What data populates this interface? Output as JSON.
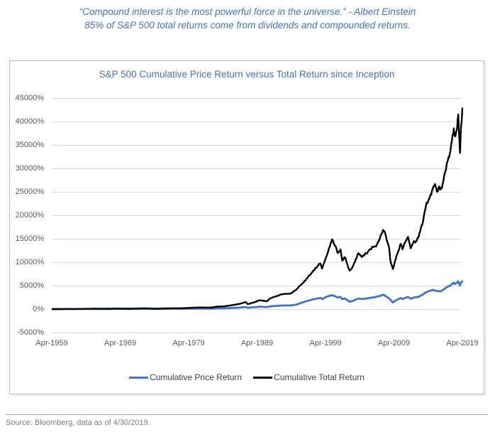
{
  "header": {
    "quote_line1": "“Compound interest is the most powerful force in the universe.” - Albert Einstein",
    "quote_line2": "85% of S&P 500 total returns come from dividends and compounded returns."
  },
  "footer": {
    "source": "Source: Bloomberg, data as of 4/30/2019."
  },
  "colors": {
    "accent_blue": "#4472C4",
    "series_price": "#4472C4",
    "series_total": "#000000",
    "gridline": "#D9D9D9",
    "axis_label": "#595959",
    "panel_border": "#BFBFBF",
    "source_text": "#7F7F7F"
  },
  "chart_data": {
    "type": "line",
    "title": "S&P 500 Cumulative Price Return versus Total Return since Inception",
    "grid": true,
    "legend_position": "bottom",
    "ylim": [
      -5000,
      45000
    ],
    "y_tick_step": 5000,
    "y_ticks": [
      {
        "label": "45000%",
        "value": 45000
      },
      {
        "label": "40000%",
        "value": 40000
      },
      {
        "label": "35000%",
        "value": 35000
      },
      {
        "label": "30000%",
        "value": 30000
      },
      {
        "label": "25000%",
        "value": 25000
      },
      {
        "label": "20000%",
        "value": 20000
      },
      {
        "label": "15000%",
        "value": 15000
      },
      {
        "label": "10000%",
        "value": 10000
      },
      {
        "label": "5000%",
        "value": 5000
      },
      {
        "label": "0%",
        "value": 0
      },
      {
        "label": "-5000%",
        "value": -5000
      }
    ],
    "x_range_years": [
      1959.3,
      2019.3
    ],
    "x_ticks": [
      {
        "label": "Apr-1959",
        "year": 1959.3
      },
      {
        "label": "Apr-1969",
        "year": 1969.3
      },
      {
        "label": "Apr-1979",
        "year": 1979.3
      },
      {
        "label": "Apr-1989",
        "year": 1989.3
      },
      {
        "label": "Apr-1999",
        "year": 1999.3
      },
      {
        "label": "Apr-2009",
        "year": 2009.3
      },
      {
        "label": "Apr-2019",
        "year": 2019.3
      }
    ],
    "series": [
      {
        "name": "Cumulative Price Return",
        "color": "#4472C4",
        "points": [
          [
            1959.3,
            0
          ],
          [
            1962.5,
            5
          ],
          [
            1965.8,
            30
          ],
          [
            1966.8,
            22
          ],
          [
            1968.9,
            45
          ],
          [
            1970.4,
            30
          ],
          [
            1972.9,
            65
          ],
          [
            1974.7,
            25
          ],
          [
            1976,
            60
          ],
          [
            1978.2,
            60
          ],
          [
            1980,
            95
          ],
          [
            1980.9,
            115
          ],
          [
            1982.6,
            100
          ],
          [
            1983.5,
            160
          ],
          [
            1984.5,
            170
          ],
          [
            1985.5,
            230
          ],
          [
            1986.7,
            310
          ],
          [
            1987.65,
            420
          ],
          [
            1987.95,
            290
          ],
          [
            1989,
            400
          ],
          [
            1989.7,
            500
          ],
          [
            1990.75,
            430
          ],
          [
            1991.2,
            580
          ],
          [
            1992,
            660
          ],
          [
            1993,
            760
          ],
          [
            1994.2,
            770
          ],
          [
            1995,
            940
          ],
          [
            1996.4,
            1650
          ],
          [
            1997.6,
            2100
          ],
          [
            1998.55,
            2400
          ],
          [
            1998.8,
            2100
          ],
          [
            1999.5,
            2700
          ],
          [
            2000.25,
            2950
          ],
          [
            2000.7,
            2750
          ],
          [
            2001.1,
            2450
          ],
          [
            2001.5,
            2600
          ],
          [
            2001.75,
            2100
          ],
          [
            2002.1,
            2300
          ],
          [
            2002.8,
            1550
          ],
          [
            2003.2,
            1700
          ],
          [
            2004.1,
            2250
          ],
          [
            2004.6,
            2150
          ],
          [
            2005.5,
            2300
          ],
          [
            2006.4,
            2500
          ],
          [
            2007.8,
            3050
          ],
          [
            2008.6,
            2300
          ],
          [
            2009.15,
            1400
          ],
          [
            2009.6,
            1900
          ],
          [
            2010.3,
            2350
          ],
          [
            2010.55,
            2150
          ],
          [
            2011.35,
            2600
          ],
          [
            2011.75,
            2200
          ],
          [
            2012.2,
            2450
          ],
          [
            2012.9,
            2600
          ],
          [
            2013.5,
            3100
          ],
          [
            2014,
            3600
          ],
          [
            2015,
            4100
          ],
          [
            2015.6,
            3850
          ],
          [
            2016.1,
            3800
          ],
          [
            2016.5,
            4100
          ],
          [
            2017,
            4650
          ],
          [
            2017.5,
            5000
          ],
          [
            2018.05,
            5650
          ],
          [
            2018.2,
            5350
          ],
          [
            2018.45,
            5550
          ],
          [
            2018.7,
            5950
          ],
          [
            2018.95,
            4950
          ],
          [
            2019.1,
            5650
          ],
          [
            2019.3,
            5950
          ]
        ]
      },
      {
        "name": "Cumulative Total Return",
        "color": "#000000",
        "points": [
          [
            1959.3,
            0
          ],
          [
            1960.5,
            10
          ],
          [
            1961.9,
            35
          ],
          [
            1962.5,
            12
          ],
          [
            1964,
            50
          ],
          [
            1965.8,
            75
          ],
          [
            1966.8,
            55
          ],
          [
            1968.9,
            110
          ],
          [
            1970.4,
            75
          ],
          [
            1972.9,
            165
          ],
          [
            1974.7,
            70
          ],
          [
            1976,
            170
          ],
          [
            1978.2,
            180
          ],
          [
            1980,
            290
          ],
          [
            1980.9,
            350
          ],
          [
            1982.6,
            330
          ],
          [
            1983.5,
            540
          ],
          [
            1984.5,
            580
          ],
          [
            1985.5,
            800
          ],
          [
            1986.7,
            1100
          ],
          [
            1987.65,
            1500
          ],
          [
            1987.95,
            1050
          ],
          [
            1989,
            1500
          ],
          [
            1989.7,
            1900
          ],
          [
            1990.75,
            1650
          ],
          [
            1991.2,
            2300
          ],
          [
            1992,
            2700
          ],
          [
            1993,
            3200
          ],
          [
            1994.2,
            3300
          ],
          [
            1995,
            4100
          ],
          [
            1996.4,
            6200
          ],
          [
            1997.6,
            8300
          ],
          [
            1998.55,
            9800
          ],
          [
            1998.8,
            8600
          ],
          [
            1999.5,
            11500
          ],
          [
            2000.25,
            14800
          ],
          [
            2000.7,
            13500
          ],
          [
            2001.1,
            12000
          ],
          [
            2001.5,
            12800
          ],
          [
            2001.75,
            10200
          ],
          [
            2002.1,
            11200
          ],
          [
            2002.8,
            8200
          ],
          [
            2003.2,
            8800
          ],
          [
            2004.1,
            11800
          ],
          [
            2004.6,
            11200
          ],
          [
            2005.5,
            12200
          ],
          [
            2006.4,
            13500
          ],
          [
            2006.7,
            13200
          ],
          [
            2007.8,
            17100
          ],
          [
            2008.2,
            15000
          ],
          [
            2008.6,
            13200
          ],
          [
            2008.75,
            10500
          ],
          [
            2009.15,
            8500
          ],
          [
            2009.6,
            11000
          ],
          [
            2010.3,
            13900
          ],
          [
            2010.55,
            12900
          ],
          [
            2011.35,
            15500
          ],
          [
            2011.75,
            13000
          ],
          [
            2012.2,
            14500
          ],
          [
            2012.5,
            14200
          ],
          [
            2012.9,
            15500
          ],
          [
            2013.5,
            18500
          ],
          [
            2014,
            22300
          ],
          [
            2014.5,
            23500
          ],
          [
            2015,
            25800
          ],
          [
            2015.3,
            26800
          ],
          [
            2015.6,
            24800
          ],
          [
            2015.9,
            26300
          ],
          [
            2016.1,
            25200
          ],
          [
            2016.5,
            27000
          ],
          [
            2017,
            30500
          ],
          [
            2017.5,
            33500
          ],
          [
            2018.05,
            38500
          ],
          [
            2018.2,
            36800
          ],
          [
            2018.45,
            37500
          ],
          [
            2018.7,
            41500
          ],
          [
            2018.95,
            32900
          ],
          [
            2019.1,
            38500
          ],
          [
            2019.3,
            42000
          ]
        ]
      }
    ]
  }
}
